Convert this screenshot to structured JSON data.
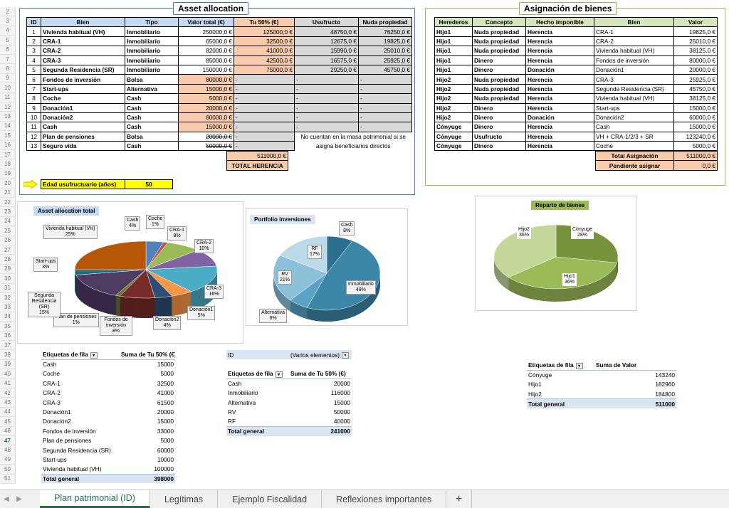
{
  "colors": {
    "accent_green": "#1e7145",
    "header_blue": "#c5d9f1",
    "orange": "#f8cbad",
    "grey": "#d9d9d9",
    "yellow": "#ffff00",
    "frame_blue": "#4a7ebb",
    "frame_green": "#9bbb59"
  },
  "row_numbers": [
    "2",
    "3",
    "4",
    "5",
    "6",
    "7",
    "8",
    "9",
    "10",
    "11",
    "12",
    "13",
    "14",
    "15",
    "16",
    "17",
    "18",
    "19",
    "20",
    "21",
    "22",
    "23",
    "24",
    "25",
    "26",
    "27",
    "28",
    "29",
    "30",
    "31",
    "32",
    "33",
    "34",
    "35",
    "36",
    "37",
    "38",
    "39",
    "40",
    "41",
    "42",
    "43",
    "44",
    "45",
    "46",
    "47",
    "48",
    "49",
    "50",
    "51"
  ],
  "active_row": "47",
  "asset": {
    "title": "Asset allocation",
    "headers": {
      "id": "ID",
      "bien": "Bien",
      "tipo": "Tipo",
      "valor": "Valor total (€)",
      "tu50": "Tu 50% (€)",
      "usufructo": "Usufructo",
      "nuda": "Nuda propiedad"
    },
    "rows": [
      {
        "id": "1",
        "bien": "Vivienda habitual (VH)",
        "tipo": "Inmobiliario",
        "valor": "250000,0 €",
        "tu50": "125000,0 €",
        "us": "48750,0 €",
        "nu": "76250,0 €"
      },
      {
        "id": "2",
        "bien": "CRA-1",
        "tipo": "Inmobiliario",
        "valor": "65000,0 €",
        "tu50": "32500,0 €",
        "us": "12675,0 €",
        "nu": "19825,0 €"
      },
      {
        "id": "3",
        "bien": "CRA-2",
        "tipo": "Inmobiliario",
        "valor": "82000,0 €",
        "tu50": "41000,0 €",
        "us": "15990,0 €",
        "nu": "25010,0 €"
      },
      {
        "id": "4",
        "bien": "CRA-3",
        "tipo": "Inmobiliario",
        "valor": "85000,0 €",
        "tu50": "42500,0 €",
        "us": "16575,0 €",
        "nu": "25925,0 €"
      },
      {
        "id": "5",
        "bien": "Segunda Residencia (SR)",
        "tipo": "Inmobiliario",
        "valor": "150000,0 €",
        "tu50": "75000,0 €",
        "us": "29250,0 €",
        "nu": "45750,0 €"
      },
      {
        "id": "6",
        "bien": "Fondos de inversión",
        "tipo": "Bolsa",
        "valor": "80000,0 €",
        "tu50": "-",
        "us": "-",
        "nu": "-"
      },
      {
        "id": "7",
        "bien": "Start-ups",
        "tipo": "Alternativa",
        "valor": "15000,0 €",
        "tu50": "-",
        "us": "-",
        "nu": "-"
      },
      {
        "id": "8",
        "bien": "Coche",
        "tipo": "Cash",
        "valor": "5000,0 €",
        "tu50": "-",
        "us": "-",
        "nu": "-"
      },
      {
        "id": "9",
        "bien": "Donación1",
        "tipo": "Cash",
        "valor": "20000,0 €",
        "tu50": "-",
        "us": "-",
        "nu": "-"
      },
      {
        "id": "10",
        "bien": "Donación2",
        "tipo": "Cash",
        "valor": "60000,0 €",
        "tu50": "-",
        "us": "-",
        "nu": "-"
      },
      {
        "id": "11",
        "bien": "Cash",
        "tipo": "Cash",
        "valor": "15000,0 €",
        "tu50": "-",
        "us": "-",
        "nu": "-"
      },
      {
        "id": "12",
        "bien": "Plan de pensiones",
        "tipo": "Bolsa",
        "valor": "20000,0 €",
        "tu50": "-"
      },
      {
        "id": "13",
        "bien": "Seguro vida",
        "tipo": "Cash",
        "valor": "50000,0 €",
        "tu50": "-"
      }
    ],
    "note_line1": "No cuentan en la masa patrimonial si se",
    "note_line2": "asigna beneficiarios directos",
    "total_value": "511000,0 €",
    "total_label": "TOTAL HERENCIA",
    "edad_label": "Edad usufructuario (años)",
    "edad_value": "50"
  },
  "asignacion": {
    "title": "Asignación de bienes",
    "headers": {
      "herederos": "Herederos",
      "concepto": "Concepto",
      "hecho": "Hecho imponible",
      "bien": "Bien",
      "valor": "Valor"
    },
    "rows": [
      {
        "h": "Hijo1",
        "c": "Nuda propiedad",
        "hi": "Herencia",
        "b": "CRA-1",
        "v": "19825,0 €"
      },
      {
        "h": "Hijo1",
        "c": "Nuda propiedad",
        "hi": "Herencia",
        "b": "CRA-2",
        "v": "25010,0 €"
      },
      {
        "h": "Hijo1",
        "c": "Nuda propiedad",
        "hi": "Herencia",
        "b": "Vivienda habitual (VH)",
        "v": "38125,0 €"
      },
      {
        "h": "Hijo1",
        "c": "Dinero",
        "hi": "Herencia",
        "b": "Fondos de inversión",
        "v": "80000,0 €"
      },
      {
        "h": "Hijo1",
        "c": "Dinero",
        "hi": "Donación",
        "b": "Donación1",
        "v": "20000,0 €"
      },
      {
        "h": "Hijo2",
        "c": "Nuda propiedad",
        "hi": "Herencia",
        "b": "CRA-3",
        "v": "25925,0 €"
      },
      {
        "h": "Hijo2",
        "c": "Nuda propiedad",
        "hi": "Herencia",
        "b": "Segunda Residencia (SR)",
        "v": "45750,0 €"
      },
      {
        "h": "Hijo2",
        "c": "Nuda propiedad",
        "hi": "Herencia",
        "b": "Vivienda habitual (VH)",
        "v": "38125,0 €"
      },
      {
        "h": "Hijo2",
        "c": "Dinero",
        "hi": "Herencia",
        "b": "Start-ups",
        "v": "15000,0 €"
      },
      {
        "h": "Hijo2",
        "c": "Dinero",
        "hi": "Donación",
        "b": "Donación2",
        "v": "60000,0 €"
      },
      {
        "h": "Cónyuge",
        "c": "Dinero",
        "hi": "Herencia",
        "b": "Cash",
        "v": "15000,0 €"
      },
      {
        "h": "Cónyuge",
        "c": "Usufructo",
        "hi": "Herencia",
        "b": "VH + CRA-1/2/3 + SR",
        "v": "123240,0 €"
      },
      {
        "h": "Cónyuge",
        "c": "Dinero",
        "hi": "Herencia",
        "b": "Coche",
        "v": "5000,0 €"
      }
    ],
    "total_label": "Total Asignación",
    "total_value": "511000,0 €",
    "pend_label": "Pendiente asignar",
    "pend_value": "0,0 €"
  },
  "chart_data": [
    {
      "type": "pie",
      "title": "Asset allocation total",
      "categories": [
        "Cash",
        "Coche",
        "CRA-1",
        "CRA-2",
        "CRA-3",
        "Donación1",
        "Donación2",
        "Fondos de inversión",
        "Plan de pensiones",
        "Segunda Residencia (SR)",
        "Start-ups",
        "Vivienda habitual (VH)"
      ],
      "labels": [
        "Cash",
        "Coche",
        "CRA-1",
        "CRA-2",
        "CRA-3",
        "Donación1",
        "Donación2",
        "Fondos de inversión",
        "Plan de pensiones",
        "Segunda Residencia (SR)",
        "Start-ups",
        "Vivienda habitual (VH)"
      ],
      "values": [
        4,
        1,
        8,
        10,
        16,
        5,
        4,
        8,
        1,
        15,
        3,
        25
      ],
      "pct": [
        "4%",
        "1%",
        "8%",
        "10%",
        "16%",
        "5%",
        "4%",
        "8%",
        "1%",
        "15%",
        "3%",
        "25%"
      ],
      "colors": [
        "#4f81bd",
        "#c0504d",
        "#9bbb59",
        "#8064a2",
        "#4bacc6",
        "#f79646",
        "#2c4d75",
        "#772c2a",
        "#5f7530",
        "#4d3b62",
        "#276a7c",
        "#b65708"
      ]
    },
    {
      "type": "pie",
      "title": "Portfolio inversiones",
      "categories": [
        "Cash",
        "Inmobiliario",
        "Alternativa",
        "RV",
        "RF"
      ],
      "labels": [
        "Cash",
        "Inmobiliario",
        "Alternativa",
        "RV",
        "RF"
      ],
      "values": [
        8,
        48,
        6,
        21,
        17
      ],
      "pct": [
        "8%",
        "48%",
        "6%",
        "21%",
        "17%"
      ],
      "colors": [
        "#2e6f8e",
        "#3c86a8",
        "#5aa3c4",
        "#8dc0d9",
        "#bcd9e8"
      ]
    },
    {
      "type": "pie",
      "title": "Reparto de bienes",
      "categories": [
        "Cónyuge",
        "Hijo1",
        "Hijo2"
      ],
      "labels": [
        "Cónyuge",
        "Hijo1",
        "Hijo2"
      ],
      "values": [
        28,
        36,
        36
      ],
      "pct": [
        "28%",
        "36%",
        "36%"
      ],
      "colors": [
        "#77933c",
        "#9bbb59",
        "#c4d79b"
      ]
    }
  ],
  "pivot1": {
    "h1": "Etiquetas de fila",
    "h2": "Suma de Tu 50% (€)",
    "rows": [
      [
        "Cash",
        "15000"
      ],
      [
        "Coche",
        "5000"
      ],
      [
        "CRA-1",
        "32500"
      ],
      [
        "CRA-2",
        "41000"
      ],
      [
        "CRA-3",
        "61500"
      ],
      [
        "Donación1",
        "20000"
      ],
      [
        "Donación2",
        "15000"
      ],
      [
        "Fondos de inversión",
        "33000"
      ],
      [
        "Plan de pensiones",
        "5000"
      ],
      [
        "Segunda Residencia (SR)",
        "60000"
      ],
      [
        "Start-ups",
        "10000"
      ],
      [
        "Vivienda habitual (VH)",
        "100000"
      ]
    ],
    "total": [
      "Total general",
      "398000"
    ]
  },
  "pivot2": {
    "filter_label": "ID",
    "filter_value": "(Varios elementos)",
    "h1": "Etiquetas de fila",
    "h2": "Suma de Tu 50% (€)",
    "rows": [
      [
        "Cash",
        "20000"
      ],
      [
        "Inmobiliario",
        "116000"
      ],
      [
        "Alternativa",
        "15000"
      ],
      [
        "RV",
        "50000"
      ],
      [
        "RF",
        "40000"
      ]
    ],
    "total": [
      "Total general",
      "241000"
    ]
  },
  "pivot3": {
    "h1": "Etiquetas de fila",
    "h2": "Suma de Valor",
    "rows": [
      [
        "Cónyuge",
        "143240"
      ],
      [
        "Hijo1",
        "182960"
      ],
      [
        "Hijo2",
        "184800"
      ]
    ],
    "total": [
      "Total general",
      "511000"
    ]
  },
  "tabs": [
    "Plan patrimonial (ID)",
    "Legítimas",
    "Ejemplo Fiscalidad",
    "Reflexiones importantes"
  ],
  "add_tab": "+"
}
